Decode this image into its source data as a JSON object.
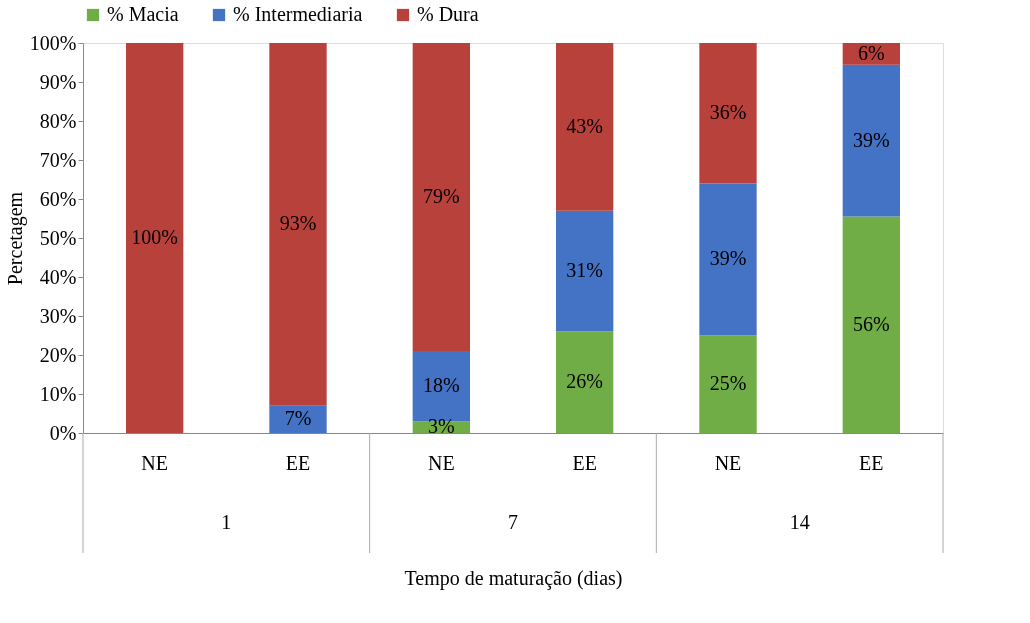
{
  "chart_data": {
    "type": "bar",
    "stacked": true,
    "xlabel": "Tempo de maturação (dias)",
    "ylabel": "Percetagem",
    "categories": [
      "NE",
      "EE",
      "NE",
      "EE",
      "NE",
      "EE"
    ],
    "annotations": [
      "1",
      "7",
      "14"
    ],
    "series": [
      {
        "name": "% Macia",
        "color": "#70ad47",
        "values": [
          0,
          0,
          3,
          26,
          25,
          55.5
        ],
        "value_labels": [
          null,
          null,
          "3%",
          "26%",
          "25%",
          "56%"
        ]
      },
      {
        "name": "% Intermediaria",
        "color": "#4472c4",
        "values": [
          0,
          7,
          18,
          31,
          39,
          38.9
        ],
        "value_labels": [
          null,
          "7%",
          "18%",
          "31%",
          "39%",
          "39%"
        ]
      },
      {
        "name": "% Dura",
        "color": "#b9413c",
        "values": [
          100,
          93,
          79,
          43,
          36,
          5.6
        ],
        "value_labels": [
          "100%",
          "93%",
          "79%",
          "43%",
          "36%",
          "6%"
        ]
      }
    ],
    "ylim": [
      0,
      100
    ],
    "yticks": [
      {
        "value": 0,
        "label": "0%"
      },
      {
        "value": 10,
        "label": "10%"
      },
      {
        "value": 20,
        "label": "20%"
      },
      {
        "value": 30,
        "label": "30%"
      },
      {
        "value": 40,
        "label": "40%"
      },
      {
        "value": 50,
        "label": "50%"
      },
      {
        "value": 60,
        "label": "60%"
      },
      {
        "value": 70,
        "label": "70%"
      },
      {
        "value": 80,
        "label": "80%"
      },
      {
        "value": 90,
        "label": "90%"
      },
      {
        "value": 100,
        "label": "100%"
      }
    ],
    "legend": "top",
    "grid": false
  }
}
